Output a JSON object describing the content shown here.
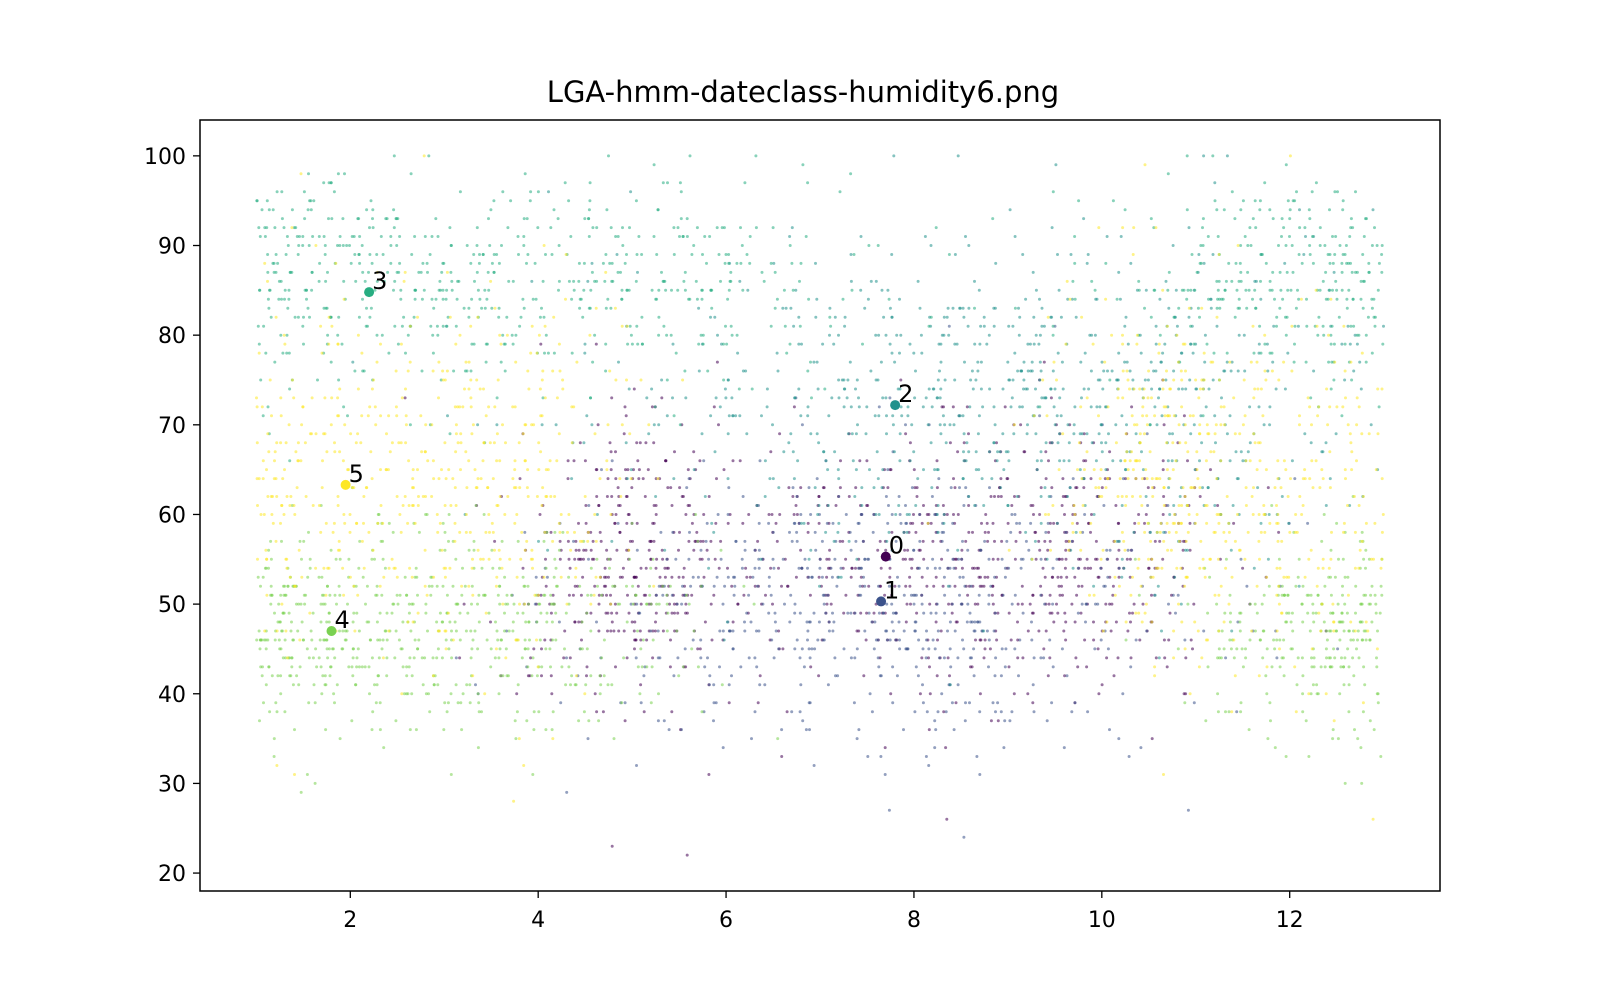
{
  "chart_data": {
    "type": "scatter",
    "title": "LGA-hmm-dateclass-humidity6.png",
    "xlabel": "",
    "ylabel": "",
    "xlim": [
      0.4,
      13.6
    ],
    "ylim": [
      18,
      104
    ],
    "x_ticks": [
      2,
      4,
      6,
      8,
      10,
      12
    ],
    "y_ticks": [
      20,
      30,
      40,
      50,
      60,
      70,
      80,
      90,
      100
    ],
    "grid": false,
    "legend": "none",
    "x_range": [
      1,
      13
    ],
    "y_step": 1,
    "classes": [
      {
        "name": "0",
        "color": "#440154",
        "cx": [
          [
            5.0,
            0.6
          ],
          [
            7.6,
            1.3
          ],
          [
            9.6,
            0.9
          ]
        ],
        "cy": [
          55,
          8
        ],
        "weight": 1.2
      },
      {
        "name": "1",
        "color": "#3b528b",
        "cx": [
          [
            7.6,
            1.6
          ]
        ],
        "cy": [
          50,
          8
        ],
        "weight": 0.8
      },
      {
        "name": "2",
        "color": "#21918c",
        "cx": [
          [
            7.8,
            1.8
          ],
          [
            10.2,
            1.4
          ]
        ],
        "cy": [
          72,
          10
        ],
        "weight": 1.0
      },
      {
        "name": "3",
        "color": "#27ad81",
        "cx": [
          [
            2.2,
            1.1
          ],
          [
            5.0,
            1.4
          ],
          [
            11.8,
            1.0
          ]
        ],
        "cy": [
          86,
          6
        ],
        "weight": 1.1
      },
      {
        "name": "4",
        "color": "#7ad151",
        "cx": [
          [
            1.8,
            0.9
          ],
          [
            3.8,
            1.0
          ],
          [
            12.3,
            0.7
          ]
        ],
        "cy": [
          47,
          6
        ],
        "weight": 1.1
      },
      {
        "name": "5",
        "color": "#fde725",
        "cx": [
          [
            1.9,
            0.9
          ],
          [
            3.7,
            0.8
          ],
          [
            11.8,
            1.1
          ],
          [
            10.6,
            0.6
          ]
        ],
        "cy": [
          64,
          11
        ],
        "weight": 1.3
      }
    ],
    "centroids": [
      {
        "label": "0",
        "x": 7.7,
        "y": 55.3,
        "color": "#440154"
      },
      {
        "label": "1",
        "x": 7.65,
        "y": 50.3,
        "color": "#3b528b"
      },
      {
        "label": "2",
        "x": 7.8,
        "y": 72.2,
        "color": "#21918c"
      },
      {
        "label": "3",
        "x": 2.2,
        "y": 84.8,
        "color": "#27ad81"
      },
      {
        "label": "4",
        "x": 1.8,
        "y": 47.0,
        "color": "#7ad151"
      },
      {
        "label": "5",
        "x": 1.95,
        "y": 63.3,
        "color": "#fde725"
      }
    ]
  }
}
